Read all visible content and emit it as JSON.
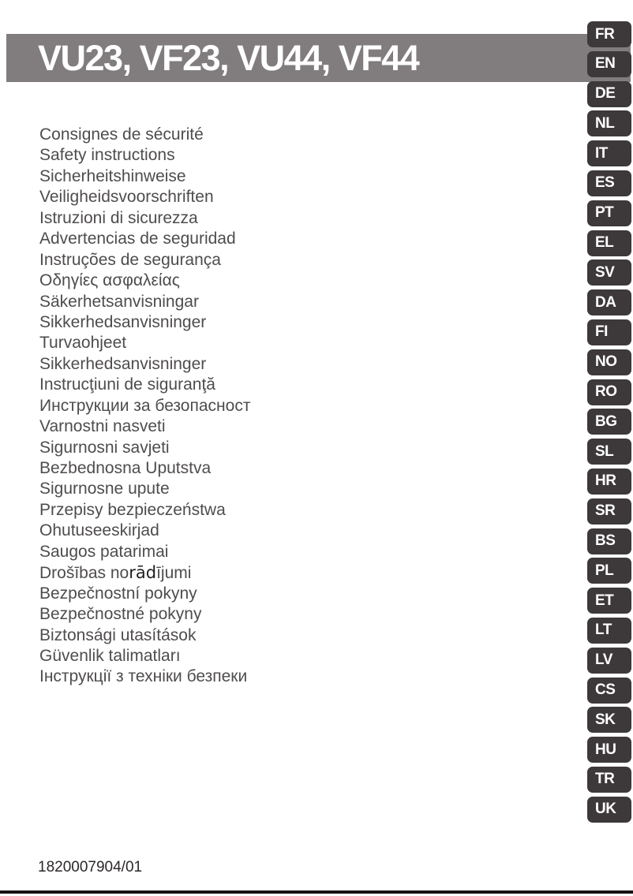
{
  "header": {
    "title": "VU23, VF23, VU44, VF44"
  },
  "languages": [
    {
      "code": "FR",
      "label": "Consignes de sécurité"
    },
    {
      "code": "EN",
      "label": "Safety instructions"
    },
    {
      "code": "DE",
      "label": "Sicherheitshinweise"
    },
    {
      "code": "NL",
      "label": "Veiligheidsvoorschriften"
    },
    {
      "code": "IT",
      "label": "Istruzioni di sicurezza"
    },
    {
      "code": "ES",
      "label": "Advertencias de seguridad"
    },
    {
      "code": "PT",
      "label": "Instruções de segurança"
    },
    {
      "code": "EL",
      "label": "Οδηγίες ασφαλείας"
    },
    {
      "code": "SV",
      "label": "Säkerhetsanvisningar"
    },
    {
      "code": "DA",
      "label": "Sikkerhedsanvisninger"
    },
    {
      "code": "FI",
      "label": "Turvaohjeet"
    },
    {
      "code": "NO",
      "label": "Sikkerhedsanvisninger"
    },
    {
      "code": "RO",
      "label": "Instrucţiuni de siguranţă"
    },
    {
      "code": "BG",
      "label": "Инструкции за безопасност"
    },
    {
      "code": "SL",
      "label": "Varnostni nasveti"
    },
    {
      "code": "HR",
      "label": "Sigurnosni savjeti"
    },
    {
      "code": "SR",
      "label": "Bezbednosna Uputstva"
    },
    {
      "code": "BS",
      "label": "Sigurnosne upute"
    },
    {
      "code": "PL",
      "label": "Przepisy bezpieczeństwa"
    },
    {
      "code": "ET",
      "label": "Ohutuseeskirjad"
    },
    {
      "code": "LT",
      "label": "Saugos patarimai"
    },
    {
      "code": "LV",
      "label": "Drošības norādījumi"
    },
    {
      "code": "CS",
      "label": "Bezpečnostní pokyny"
    },
    {
      "code": "SK",
      "label": "Bezpečnostné pokyny"
    },
    {
      "code": "HU",
      "label": "Biztonsági utasítások"
    },
    {
      "code": "TR",
      "label": "Güvenlik talimatları"
    },
    {
      "code": "UK",
      "label": "Інструкції з техніки безпеки"
    }
  ],
  "lv_segments": {
    "pre": "Drošības no",
    "emph": "rād",
    "post": "ījumi"
  },
  "footer": {
    "doc_number": "1820007904/01"
  },
  "colors": {
    "header_bar": "#817D7E",
    "tab_background": "#3D393A",
    "tab_text": "#FFFFFF",
    "list_text": "#4F4C4D",
    "bottom_rule": "#161214"
  }
}
